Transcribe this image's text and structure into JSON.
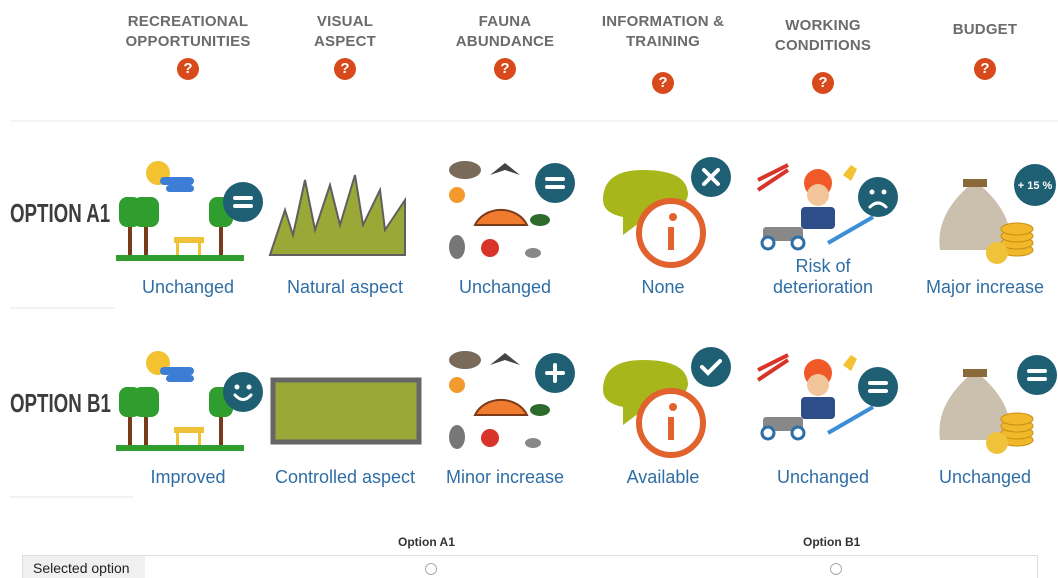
{
  "attributes": [
    {
      "name": "RECREATIONAL OPPORTUNITIES"
    },
    {
      "name": "VISUAL ASPECT"
    },
    {
      "name": "FAUNA ABUNDANCE"
    },
    {
      "name": "INFORMATION & TRAINING"
    },
    {
      "name": "WORKING CONDITIONS"
    },
    {
      "name": "BUDGET"
    }
  ],
  "help_icon": "?",
  "options": [
    {
      "label": "OPTION A1",
      "levels": [
        "Unchanged",
        "Natural aspect",
        "Unchanged",
        "None",
        "Risk of deterioration",
        "Major increase"
      ],
      "budget_badge": "+ 15 %"
    },
    {
      "label": "OPTION B1",
      "levels": [
        "Improved",
        "Controlled aspect",
        "Minor increase",
        "Available",
        "Unchanged",
        "Unchanged"
      ]
    }
  ],
  "selection": {
    "columns": [
      "Option A1",
      "Option B1"
    ],
    "row_label": "Selected option"
  }
}
